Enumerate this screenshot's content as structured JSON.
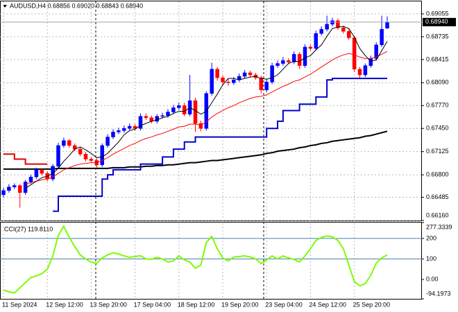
{
  "chart_data": [
    {
      "type": "candlestick",
      "title": "AUDUSD,H4  0.68856 0.69020 0.68843 0.68940",
      "categories": [
        "11 Sep 2024",
        null,
        null,
        null,
        null,
        null,
        null,
        null,
        "12 Sep 12:00",
        null,
        null,
        null,
        null,
        null,
        null,
        null,
        "13 Sep 20:00",
        null,
        null,
        null,
        null,
        null,
        null,
        null,
        "17 Sep 04:00",
        null,
        null,
        null,
        null,
        null,
        null,
        null,
        "18 Sep 12:00",
        null,
        null,
        null,
        null,
        null,
        null,
        null,
        "19 Sep 20:00",
        null,
        null,
        null,
        null,
        null,
        null,
        null,
        "23 Sep 04:00",
        null,
        null,
        null,
        null,
        null,
        null,
        null,
        "24 Sep 12:00",
        null,
        null,
        null,
        null,
        null,
        null,
        null,
        "25 Sep 20:00",
        null,
        null,
        null,
        null,
        null,
        null
      ],
      "open": [
        0.6652,
        0.6658,
        0.6663,
        0.6665,
        0.6655,
        0.667,
        0.6677,
        0.6687,
        0.6682,
        0.6674,
        0.6692,
        0.6721,
        0.6728,
        0.6721,
        0.6716,
        0.6709,
        0.6702,
        0.67,
        0.6694,
        0.6721,
        0.6733,
        0.674,
        0.6742,
        0.6745,
        0.6748,
        0.6745,
        0.6762,
        0.676,
        0.6755,
        0.6762,
        0.6763,
        0.6768,
        0.6774,
        0.6777,
        0.6765,
        0.6784,
        0.6752,
        0.6745,
        0.6794,
        0.6828,
        0.6816,
        0.681,
        0.6809,
        0.6813,
        0.6818,
        0.6823,
        0.682,
        0.6816,
        0.6799,
        0.681,
        0.6833,
        0.6836,
        0.684,
        0.6838,
        0.6849,
        0.6833,
        0.6859,
        0.6857,
        0.6878,
        0.6884,
        0.6891,
        0.6896,
        0.6886,
        0.6881,
        0.6872,
        0.6828,
        0.682,
        0.6833,
        0.6843,
        0.6862,
        0.68856
      ],
      "high": [
        0.6662,
        0.6667,
        0.6668,
        0.6667,
        0.6673,
        0.668,
        0.669,
        0.6689,
        0.6685,
        0.6695,
        0.6725,
        0.6732,
        0.673,
        0.6724,
        0.6719,
        0.6712,
        0.6705,
        0.6703,
        0.6724,
        0.6737,
        0.6744,
        0.6746,
        0.6749,
        0.6752,
        0.6751,
        0.6766,
        0.6766,
        0.6763,
        0.6765,
        0.6767,
        0.6772,
        0.6778,
        0.6781,
        0.6781,
        0.682,
        0.6788,
        0.6756,
        0.6797,
        0.6837,
        0.6831,
        0.6819,
        0.6814,
        0.6817,
        0.6822,
        0.6827,
        0.6826,
        0.6823,
        0.6819,
        0.6814,
        0.6837,
        0.684,
        0.6845,
        0.6843,
        0.6853,
        0.6852,
        0.6863,
        0.6862,
        0.6882,
        0.6888,
        0.6903,
        0.69,
        0.6899,
        0.6889,
        0.6884,
        0.6875,
        0.6831,
        0.6836,
        0.6847,
        0.6866,
        0.6903,
        0.6902
      ],
      "low": [
        0.6648,
        0.6655,
        0.666,
        0.6634,
        0.6652,
        0.6667,
        0.6674,
        0.6679,
        0.6671,
        0.6671,
        0.6689,
        0.6718,
        0.6718,
        0.6713,
        0.6706,
        0.6699,
        0.6697,
        0.669,
        0.6691,
        0.6718,
        0.673,
        0.6737,
        0.6739,
        0.6742,
        0.6742,
        0.6742,
        0.6757,
        0.6752,
        0.6752,
        0.6759,
        0.676,
        0.6765,
        0.6771,
        0.6762,
        0.6762,
        0.674,
        0.6741,
        0.6742,
        0.6791,
        0.6812,
        0.6805,
        0.6805,
        0.6806,
        0.681,
        0.6815,
        0.6817,
        0.6813,
        0.6794,
        0.6796,
        0.6807,
        0.683,
        0.6833,
        0.6835,
        0.6835,
        0.6828,
        0.683,
        0.6854,
        0.6854,
        0.6875,
        0.6881,
        0.6888,
        0.6883,
        0.6878,
        0.6869,
        0.6824,
        0.6816,
        0.6817,
        0.683,
        0.684,
        0.6859,
        0.68843
      ],
      "close": [
        0.6658,
        0.6663,
        0.6665,
        0.6655,
        0.667,
        0.6677,
        0.6687,
        0.6682,
        0.6674,
        0.6692,
        0.6721,
        0.6728,
        0.6721,
        0.6716,
        0.6709,
        0.6702,
        0.67,
        0.6694,
        0.6721,
        0.6733,
        0.674,
        0.6742,
        0.6745,
        0.6748,
        0.6745,
        0.6762,
        0.676,
        0.6755,
        0.6762,
        0.6763,
        0.6768,
        0.6774,
        0.6777,
        0.6765,
        0.6784,
        0.6752,
        0.6745,
        0.6794,
        0.6828,
        0.6816,
        0.681,
        0.6809,
        0.6813,
        0.6818,
        0.6823,
        0.682,
        0.6816,
        0.6799,
        0.681,
        0.6833,
        0.6836,
        0.684,
        0.6838,
        0.6849,
        0.6833,
        0.6859,
        0.6857,
        0.6878,
        0.6884,
        0.6891,
        0.6896,
        0.6886,
        0.6881,
        0.6872,
        0.6828,
        0.682,
        0.6833,
        0.6843,
        0.6862,
        0.6884,
        0.6894
      ],
      "up_color": "#0000ff",
      "down_color": "#ff0000",
      "series": [
        {
          "color": "#000000",
          "width": 2,
          "values": [
            0.6688,
            0.6688,
            0.6688,
            0.6688,
            0.6688,
            0.6688,
            0.6688,
            0.6688,
            0.6688,
            0.6688,
            0.6689,
            0.6689,
            0.6689,
            0.6689,
            0.6689,
            0.6689,
            0.6689,
            0.6689,
            0.6689,
            0.6689,
            0.669,
            0.669,
            0.669,
            0.6691,
            0.6691,
            0.6691,
            0.6692,
            0.6692,
            0.6693,
            0.6693,
            0.6694,
            0.6694,
            0.6695,
            0.6696,
            0.6697,
            0.6697,
            0.6698,
            0.6699,
            0.67,
            0.67,
            0.6701,
            0.6702,
            0.6703,
            0.6704,
            0.6705,
            0.6706,
            0.6707,
            0.6708,
            0.671,
            0.6711,
            0.6713,
            0.6714,
            0.6715,
            0.6716,
            0.6718,
            0.6719,
            0.6721,
            0.6722,
            0.6724,
            0.6725,
            0.6727,
            0.6728,
            0.6729,
            0.673,
            0.6731,
            0.6732,
            0.6734,
            0.6735,
            0.6737,
            0.6739,
            0.6741
          ]
        },
        {
          "color": "#ff0000",
          "width": 1,
          "values": [
            null,
            null,
            null,
            null,
            0.6667,
            0.6669,
            0.6671,
            0.6673,
            0.6674,
            0.6677,
            0.6682,
            0.6687,
            0.669,
            0.6693,
            0.6695,
            0.6696,
            0.6697,
            0.6697,
            0.67,
            0.6704,
            0.6709,
            0.6713,
            0.6717,
            0.6721,
            0.6724,
            0.6728,
            0.6731,
            0.6733,
            0.6736,
            0.6738,
            0.6741,
            0.6744,
            0.6747,
            0.6748,
            0.6751,
            0.6751,
            0.675,
            0.6754,
            0.6761,
            0.6766,
            0.677,
            0.6774,
            0.6777,
            0.6781,
            0.6784,
            0.6787,
            0.6789,
            0.679,
            0.6792,
            0.6796,
            0.68,
            0.6804,
            0.6807,
            0.6811,
            0.6813,
            0.6817,
            0.6821,
            0.6826,
            0.6831,
            0.6836,
            0.6841,
            0.6845,
            0.6848,
            0.685,
            0.6848,
            0.6845,
            0.6843,
            0.6843,
            0.6845,
            0.6849,
            0.6853
          ]
        },
        {
          "color": "#000000",
          "width": 1,
          "values": [
            null,
            null,
            null,
            null,
            0.6661,
            0.6666,
            0.6671,
            0.6676,
            0.6678,
            0.6682,
            0.6689,
            0.6699,
            0.6707,
            0.6716,
            0.6719,
            0.6715,
            0.671,
            0.6704,
            0.6705,
            0.671,
            0.6718,
            0.6726,
            0.6736,
            0.6742,
            0.6744,
            0.6749,
            0.6752,
            0.6755,
            0.6757,
            0.676,
            0.6762,
            0.6766,
            0.6769,
            0.6769,
            0.6774,
            0.677,
            0.6765,
            0.6769,
            0.6781,
            0.6793,
            0.6806,
            0.6815,
            0.6815,
            0.6813,
            0.6815,
            0.6817,
            0.6818,
            0.6815,
            0.6814,
            0.6816,
            0.682,
            0.6828,
            0.6836,
            0.6839,
            0.6839,
            0.6844,
            0.6847,
            0.6855,
            0.6862,
            0.6874,
            0.6885,
            0.6887,
            0.6888,
            0.6885,
            0.6873,
            0.6857,
            0.6847,
            0.6839,
            0.6841,
            0.6854,
            0.6867
          ]
        },
        {
          "color": "#0000cd",
          "width": 2,
          "step": true,
          "values": [
            null,
            null,
            null,
            null,
            null,
            null,
            null,
            null,
            null,
            0.6629,
            0.665,
            0.665,
            0.665,
            0.665,
            0.665,
            0.665,
            0.665,
            0.665,
            0.6674,
            0.668,
            0.6687,
            0.6687,
            0.6687,
            0.6687,
            0.6687,
            0.6695,
            0.6695,
            0.6695,
            0.6695,
            0.6705,
            0.6705,
            0.6716,
            0.6716,
            0.6726,
            0.6726,
            0.6733,
            0.6733,
            0.6733,
            0.6733,
            0.6733,
            0.6733,
            0.6733,
            0.6733,
            0.6733,
            0.6733,
            0.6733,
            0.6733,
            0.6733,
            0.6745,
            0.6745,
            0.6755,
            0.677,
            0.677,
            0.677,
            0.6779,
            0.6779,
            0.6779,
            0.6789,
            0.6789,
            0.6813,
            0.6815,
            0.6815,
            0.6815,
            0.6815,
            0.6815,
            0.6815,
            0.6815,
            0.6815,
            0.6815,
            0.6815,
            0.6815
          ]
        },
        {
          "color": "#dd0000",
          "width": 2,
          "step": true,
          "values": [
            0.6709,
            0.6709,
            0.6702,
            0.6702,
            0.6695,
            0.6695,
            0.6695,
            0.6695,
            0.6695,
            null,
            null,
            null,
            null,
            null,
            null,
            null,
            null,
            null,
            null,
            null,
            null,
            null,
            null,
            null,
            null,
            null,
            null,
            null,
            null,
            null,
            null,
            null,
            null,
            null,
            null,
            null,
            null,
            null,
            null,
            null,
            null,
            null,
            null,
            null,
            null,
            null,
            null,
            null,
            null,
            null,
            null,
            null,
            null,
            null,
            null,
            null,
            null,
            null,
            null,
            null,
            null,
            null,
            null,
            null,
            null,
            null,
            null,
            null,
            null,
            null,
            null
          ]
        }
      ],
      "ylim": [
        0.6616,
        0.6923
      ],
      "yticks": [
        0.69055,
        0.68735,
        0.68415,
        {
          "value": 0.6809,
          "label": "0.68090"
        },
        {
          "value": 0.6777,
          "label": "0.67770"
        },
        {
          "value": 0.6745,
          "label": "0.67450"
        },
        0.67125,
        {
          "value": 0.668,
          "label": "0.66800"
        },
        0.66485,
        {
          "value": 0.6616,
          "label": "0.66160"
        }
      ],
      "grid": true,
      "last_price_label": "0.68940"
    },
    {
      "type": "line",
      "title": "CCI(27) 119.8110",
      "series": [
        {
          "color": "#7cfc00",
          "width": 2,
          "values": [
            -52,
            -60,
            -66,
            -40,
            -15,
            10,
            18,
            28,
            50,
            114,
            215,
            259,
            205,
            160,
            120,
            100,
            85,
            78,
            105,
            120,
            130,
            124,
            115,
            108,
            112,
            116,
            100,
            98,
            108,
            100,
            85,
            90,
            115,
            95,
            85,
            55,
            70,
            180,
            210,
            150,
            105,
            90,
            110,
            112,
            115,
            110,
            100,
            78,
            95,
            115,
            100,
            115,
            105,
            98,
            85,
            115,
            150,
            190,
            205,
            212,
            208,
            190,
            150,
            70,
            -10,
            -31,
            -20,
            20,
            80,
            105,
            119.811
          ]
        }
      ],
      "ylim": [
        -94.1973,
        277.3339
      ],
      "yticks": [
        277.3339,
        200,
        100,
        {
          "value": 0,
          "label": "0.00"
        },
        -94.1973
      ],
      "levels": [
        200,
        100
      ],
      "level_color": "#4682b4"
    }
  ]
}
